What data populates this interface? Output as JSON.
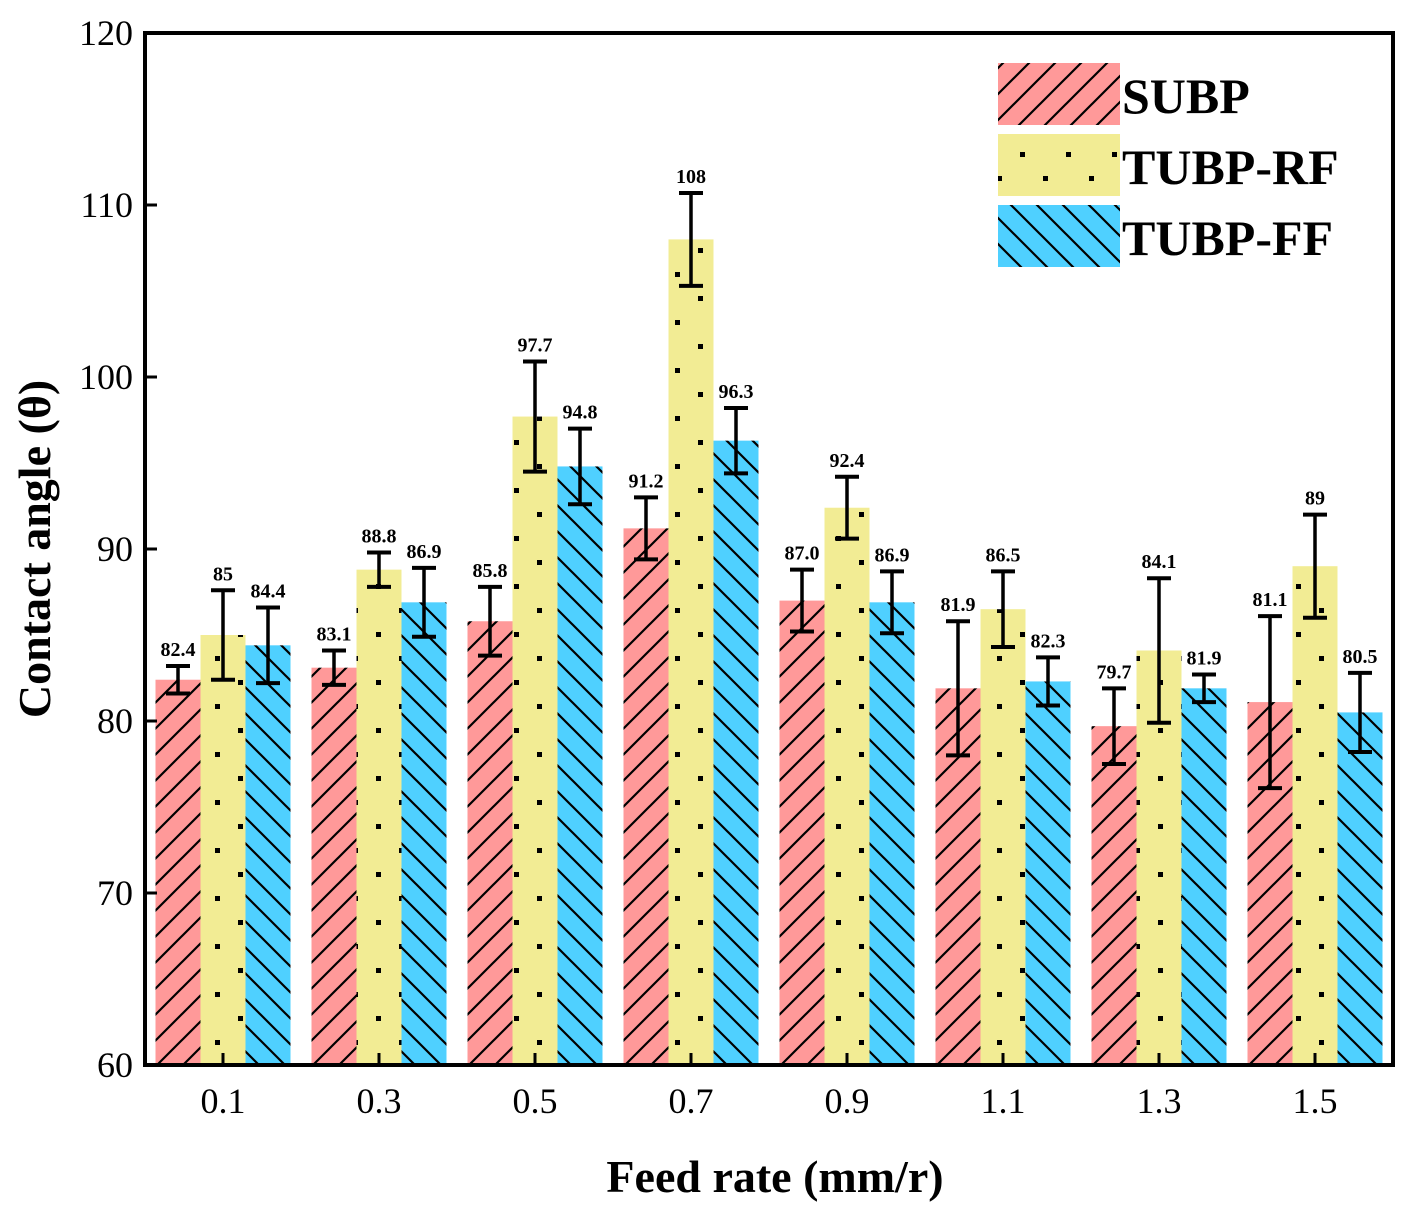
{
  "chart_data": {
    "type": "bar",
    "title": "",
    "xlabel": "Feed rate (mm/r)",
    "ylabel": "Contact angle (θ)",
    "ylim": [
      60,
      120
    ],
    "yticks": [
      60,
      70,
      80,
      90,
      100,
      110,
      120
    ],
    "categories": [
      "0.1",
      "0.3",
      "0.5",
      "0.7",
      "0.9",
      "1.1",
      "1.3",
      "1.5"
    ],
    "legend_position": "top-right",
    "grid": false,
    "series": [
      {
        "name": "SUBP",
        "color": "#FF9999",
        "pattern": "forward-hatch",
        "values": [
          82.4,
          83.1,
          85.8,
          91.2,
          87.0,
          81.9,
          79.7,
          81.1
        ],
        "labels": [
          "82.4",
          "83.1",
          "85.8",
          "91.2",
          "87.0",
          "81.9",
          "79.7",
          "81.1"
        ],
        "errors": [
          0.8,
          1.0,
          2.0,
          1.8,
          1.8,
          3.9,
          2.2,
          5.0
        ]
      },
      {
        "name": "TUBP-RF",
        "color": "#F2EC94",
        "pattern": "dots",
        "values": [
          85,
          88.8,
          97.7,
          108,
          92.4,
          86.5,
          84.1,
          89
        ],
        "labels": [
          "85",
          "88.8",
          "97.7",
          "108",
          "92.4",
          "86.5",
          "84.1",
          "89"
        ],
        "errors": [
          2.6,
          1.0,
          3.2,
          2.7,
          1.8,
          2.2,
          4.2,
          3.0
        ]
      },
      {
        "name": "TUBP-FF",
        "color": "#4FD0FF",
        "pattern": "back-hatch",
        "values": [
          84.4,
          86.9,
          94.8,
          96.3,
          86.9,
          82.3,
          81.9,
          80.5
        ],
        "labels": [
          "84.4",
          "86.9",
          "94.8",
          "96.3",
          "86.9",
          "82.3",
          "81.9",
          "80.5"
        ],
        "errors": [
          2.2,
          2.0,
          2.2,
          1.9,
          1.8,
          1.4,
          0.8,
          2.3
        ]
      }
    ]
  }
}
